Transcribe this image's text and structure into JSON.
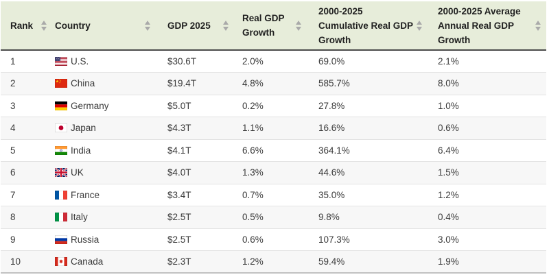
{
  "table": {
    "columns": [
      {
        "label": "Rank"
      },
      {
        "label": "Country"
      },
      {
        "label": "GDP 2025"
      },
      {
        "label": "Real GDP Growth"
      },
      {
        "label": "2000-2025 Cumulative Real GDP Growth"
      },
      {
        "label": "2000-2025 Average Annual Real GDP Growth"
      }
    ],
    "sort_icon": "sort-arrows-icon",
    "rows": [
      {
        "rank": "1",
        "flag": "us",
        "country": "U.S.",
        "gdp_2025": "$30.6T",
        "real_gdp_growth": "2.0%",
        "cumulative_growth": "69.0%",
        "avg_annual_growth": "2.1%"
      },
      {
        "rank": "2",
        "flag": "cn",
        "country": "China",
        "gdp_2025": "$19.4T",
        "real_gdp_growth": "4.8%",
        "cumulative_growth": "585.7%",
        "avg_annual_growth": "8.0%"
      },
      {
        "rank": "3",
        "flag": "de",
        "country": "Germany",
        "gdp_2025": "$5.0T",
        "real_gdp_growth": "0.2%",
        "cumulative_growth": "27.8%",
        "avg_annual_growth": "1.0%"
      },
      {
        "rank": "4",
        "flag": "jp",
        "country": "Japan",
        "gdp_2025": "$4.3T",
        "real_gdp_growth": "1.1%",
        "cumulative_growth": "16.6%",
        "avg_annual_growth": "0.6%"
      },
      {
        "rank": "5",
        "flag": "in",
        "country": "India",
        "gdp_2025": "$4.1T",
        "real_gdp_growth": "6.6%",
        "cumulative_growth": "364.1%",
        "avg_annual_growth": "6.4%"
      },
      {
        "rank": "6",
        "flag": "gb",
        "country": "UK",
        "gdp_2025": "$4.0T",
        "real_gdp_growth": "1.3%",
        "cumulative_growth": "44.6%",
        "avg_annual_growth": "1.5%"
      },
      {
        "rank": "7",
        "flag": "fr",
        "country": "France",
        "gdp_2025": "$3.4T",
        "real_gdp_growth": "0.7%",
        "cumulative_growth": "35.0%",
        "avg_annual_growth": "1.2%"
      },
      {
        "rank": "8",
        "flag": "it",
        "country": "Italy",
        "gdp_2025": "$2.5T",
        "real_gdp_growth": "0.5%",
        "cumulative_growth": "9.8%",
        "avg_annual_growth": "0.4%"
      },
      {
        "rank": "9",
        "flag": "ru",
        "country": "Russia",
        "gdp_2025": "$2.5T",
        "real_gdp_growth": "0.6%",
        "cumulative_growth": "107.3%",
        "avg_annual_growth": "3.0%"
      },
      {
        "rank": "10",
        "flag": "ca",
        "country": "Canada",
        "gdp_2025": "$2.3T",
        "real_gdp_growth": "1.2%",
        "cumulative_growth": "59.4%",
        "avg_annual_growth": "1.9%"
      }
    ]
  },
  "colors": {
    "header_bg": "#e7edda",
    "header_text": "#1f1f1f",
    "header_border": "#4a4a4a",
    "row_alt_bg": "#f7f7f7",
    "row_border": "#e3e3e3",
    "table_bottom_border": "#c2c2c2",
    "cell_text": "#3a3a3a",
    "sort_arrow": "#a9a9a9"
  }
}
